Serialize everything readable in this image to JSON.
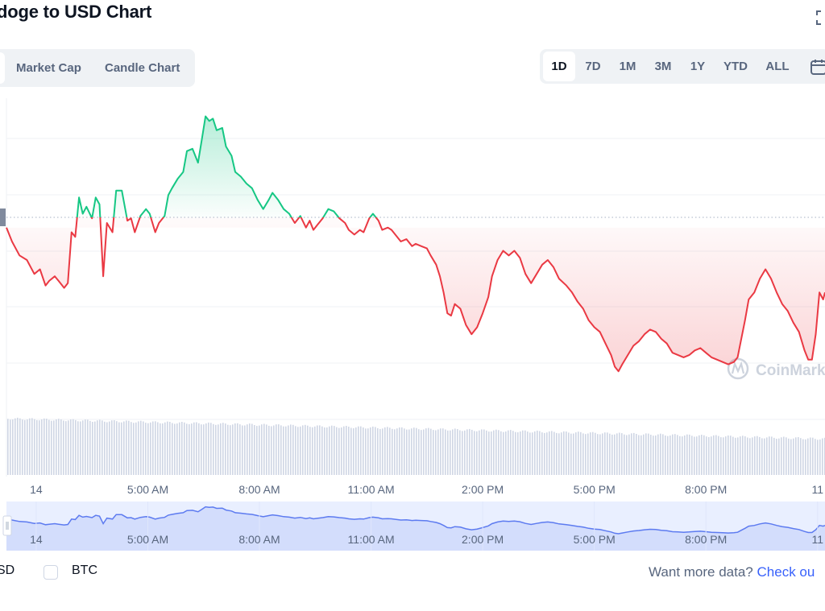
{
  "header": {
    "title": "doge to USD Chart"
  },
  "tabs": [
    {
      "label": "Market Cap"
    },
    {
      "label": "Candle Chart"
    }
  ],
  "ranges": [
    "1D",
    "7D",
    "1M",
    "3M",
    "1Y",
    "YTD",
    "ALL"
  ],
  "active_range": "1D",
  "icons": {
    "expand": "expand-icon",
    "calendar": "calendar-icon",
    "watermark": "coinmarketcap-logo-icon"
  },
  "colors": {
    "up": "#16c784",
    "down": "#ea3943",
    "grid": "#eff2f5",
    "axis_text": "#58667e",
    "navigator": "#5d7bf0"
  },
  "watermark": {
    "text": "CoinMark"
  },
  "chart_data": {
    "type": "line",
    "title": "doge to USD Chart",
    "xlabel": "",
    "ylabel": "",
    "baseline_label": "open price (dotted reference line)",
    "x_ticks": [
      "14",
      "5:00 AM",
      "8:00 AM",
      "11:00 AM",
      "2:00 PM",
      "5:00 PM",
      "8:00 PM",
      "11"
    ],
    "x_tick_hours": [
      2,
      5,
      8,
      11,
      14,
      17,
      20,
      23
    ],
    "x_range_hours": [
      1.2,
      23.2
    ],
    "y_range": [
      0,
      6.6
    ],
    "baseline": 3.6,
    "price_series": [
      [
        1.2,
        3.6
      ],
      [
        1.35,
        3.3
      ],
      [
        1.55,
        3.0
      ],
      [
        1.75,
        2.9
      ],
      [
        1.95,
        2.6
      ],
      [
        2.1,
        2.7
      ],
      [
        2.25,
        2.35
      ],
      [
        2.35,
        2.45
      ],
      [
        2.5,
        2.55
      ],
      [
        2.6,
        2.45
      ],
      [
        2.75,
        2.3
      ],
      [
        2.85,
        2.4
      ],
      [
        2.95,
        3.5
      ],
      [
        3.05,
        3.4
      ],
      [
        3.15,
        4.25
      ],
      [
        3.25,
        3.9
      ],
      [
        3.35,
        4.05
      ],
      [
        3.5,
        3.8
      ],
      [
        3.6,
        4.25
      ],
      [
        3.7,
        4.1
      ],
      [
        3.8,
        2.55
      ],
      [
        3.9,
        3.7
      ],
      [
        4.05,
        3.5
      ],
      [
        4.15,
        4.4
      ],
      [
        4.3,
        4.4
      ],
      [
        4.45,
        3.75
      ],
      [
        4.55,
        3.8
      ],
      [
        4.65,
        3.5
      ],
      [
        4.8,
        3.85
      ],
      [
        4.95,
        4.0
      ],
      [
        5.05,
        3.9
      ],
      [
        5.2,
        3.5
      ],
      [
        5.3,
        3.7
      ],
      [
        5.45,
        3.85
      ],
      [
        5.55,
        4.3
      ],
      [
        5.65,
        4.45
      ],
      [
        5.8,
        4.65
      ],
      [
        5.95,
        4.8
      ],
      [
        6.05,
        5.25
      ],
      [
        6.2,
        5.3
      ],
      [
        6.35,
        5.0
      ],
      [
        6.45,
        5.5
      ],
      [
        6.55,
        6.0
      ],
      [
        6.65,
        5.9
      ],
      [
        6.75,
        5.95
      ],
      [
        6.85,
        5.7
      ],
      [
        7.0,
        5.75
      ],
      [
        7.1,
        5.35
      ],
      [
        7.25,
        5.15
      ],
      [
        7.35,
        4.8
      ],
      [
        7.5,
        4.7
      ],
      [
        7.65,
        4.55
      ],
      [
        7.8,
        4.45
      ],
      [
        7.95,
        4.2
      ],
      [
        8.1,
        4.0
      ],
      [
        8.25,
        4.2
      ],
      [
        8.35,
        4.35
      ],
      [
        8.5,
        4.2
      ],
      [
        8.65,
        4.0
      ],
      [
        8.8,
        3.9
      ],
      [
        8.95,
        3.7
      ],
      [
        9.1,
        3.85
      ],
      [
        9.25,
        3.6
      ],
      [
        9.35,
        3.75
      ],
      [
        9.45,
        3.55
      ],
      [
        9.55,
        3.65
      ],
      [
        9.7,
        3.8
      ],
      [
        9.85,
        4.0
      ],
      [
        10.0,
        3.95
      ],
      [
        10.15,
        3.8
      ],
      [
        10.3,
        3.7
      ],
      [
        10.4,
        3.55
      ],
      [
        10.55,
        3.45
      ],
      [
        10.7,
        3.55
      ],
      [
        10.8,
        3.5
      ],
      [
        10.95,
        3.8
      ],
      [
        11.05,
        3.9
      ],
      [
        11.2,
        3.75
      ],
      [
        11.3,
        3.55
      ],
      [
        11.45,
        3.6
      ],
      [
        11.55,
        3.55
      ],
      [
        11.65,
        3.45
      ],
      [
        11.8,
        3.3
      ],
      [
        11.95,
        3.35
      ],
      [
        12.1,
        3.2
      ],
      [
        12.2,
        3.25
      ],
      [
        12.35,
        3.2
      ],
      [
        12.5,
        3.15
      ],
      [
        12.6,
        3.0
      ],
      [
        12.75,
        2.8
      ],
      [
        12.85,
        2.55
      ],
      [
        12.95,
        2.2
      ],
      [
        13.05,
        1.75
      ],
      [
        13.15,
        1.7
      ],
      [
        13.25,
        1.95
      ],
      [
        13.4,
        1.85
      ],
      [
        13.55,
        1.5
      ],
      [
        13.7,
        1.3
      ],
      [
        13.85,
        1.45
      ],
      [
        14.0,
        1.75
      ],
      [
        14.15,
        2.1
      ],
      [
        14.25,
        2.55
      ],
      [
        14.4,
        2.9
      ],
      [
        14.55,
        3.1
      ],
      [
        14.7,
        3.0
      ],
      [
        14.85,
        3.1
      ],
      [
        15.0,
        2.95
      ],
      [
        15.15,
        2.6
      ],
      [
        15.3,
        2.4
      ],
      [
        15.45,
        2.6
      ],
      [
        15.6,
        2.8
      ],
      [
        15.75,
        2.9
      ],
      [
        15.9,
        2.75
      ],
      [
        16.05,
        2.5
      ],
      [
        16.25,
        2.35
      ],
      [
        16.4,
        2.2
      ],
      [
        16.55,
        2.0
      ],
      [
        16.7,
        1.85
      ],
      [
        16.85,
        1.6
      ],
      [
        17.0,
        1.45
      ],
      [
        17.15,
        1.35
      ],
      [
        17.3,
        1.1
      ],
      [
        17.45,
        0.85
      ],
      [
        17.55,
        0.6
      ],
      [
        17.65,
        0.5
      ],
      [
        17.75,
        0.65
      ],
      [
        17.9,
        0.85
      ],
      [
        18.05,
        1.05
      ],
      [
        18.2,
        1.15
      ],
      [
        18.35,
        1.3
      ],
      [
        18.5,
        1.4
      ],
      [
        18.65,
        1.35
      ],
      [
        18.8,
        1.2
      ],
      [
        18.95,
        1.1
      ],
      [
        19.1,
        0.9
      ],
      [
        19.25,
        0.85
      ],
      [
        19.4,
        0.8
      ],
      [
        19.55,
        0.85
      ],
      [
        19.7,
        0.95
      ],
      [
        19.85,
        1.0
      ],
      [
        20.0,
        0.9
      ],
      [
        20.15,
        0.8
      ],
      [
        20.3,
        0.75
      ],
      [
        20.45,
        0.7
      ],
      [
        20.6,
        0.65
      ],
      [
        20.75,
        0.7
      ],
      [
        20.85,
        0.8
      ],
      [
        20.95,
        1.2
      ],
      [
        21.05,
        1.6
      ],
      [
        21.15,
        2.05
      ],
      [
        21.3,
        2.2
      ],
      [
        21.45,
        2.5
      ],
      [
        21.6,
        2.7
      ],
      [
        21.75,
        2.5
      ],
      [
        21.9,
        2.2
      ],
      [
        22.05,
        1.95
      ],
      [
        22.2,
        1.8
      ],
      [
        22.35,
        1.55
      ],
      [
        22.5,
        1.35
      ],
      [
        22.65,
        0.95
      ],
      [
        22.75,
        0.75
      ],
      [
        22.85,
        0.75
      ],
      [
        22.95,
        1.3
      ],
      [
        23.05,
        2.2
      ],
      [
        23.15,
        2.05
      ],
      [
        23.2,
        2.2
      ]
    ],
    "volume_relative": [
      1.0,
      0.64
    ],
    "legend": [
      {
        "label": "SD",
        "checked": true
      },
      {
        "label": "BTC",
        "checked": false
      }
    ]
  },
  "footer": {
    "more_data_text": "Want more data?",
    "more_data_link": "Check ou"
  }
}
